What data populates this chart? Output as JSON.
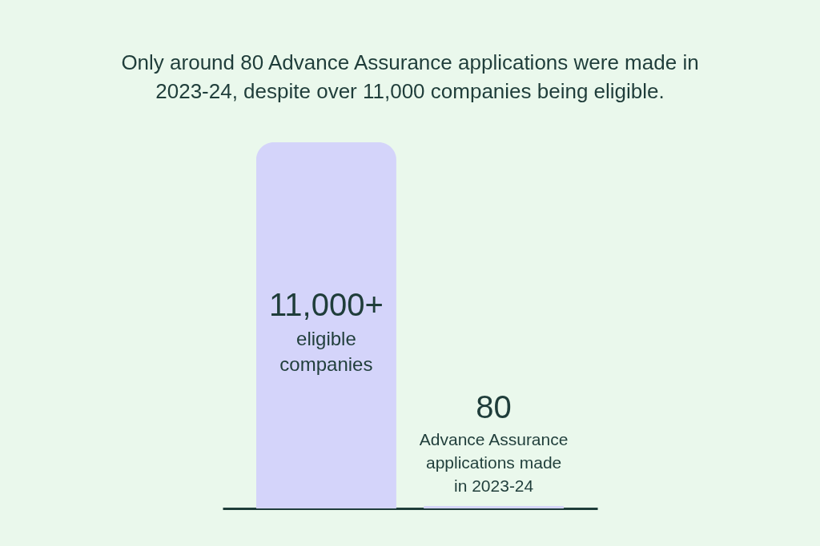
{
  "chart_data": {
    "type": "bar",
    "title": "Only around 80 Advance Assurance applications were made in 2023-24, despite over 11,000 companies being eligible.",
    "categories": [
      "eligible companies",
      "Advance Assurance applications made in 2023-24"
    ],
    "values": [
      11000,
      80
    ],
    "value_labels": [
      "11,000+",
      "80"
    ],
    "color": "#d4d4fa"
  }
}
